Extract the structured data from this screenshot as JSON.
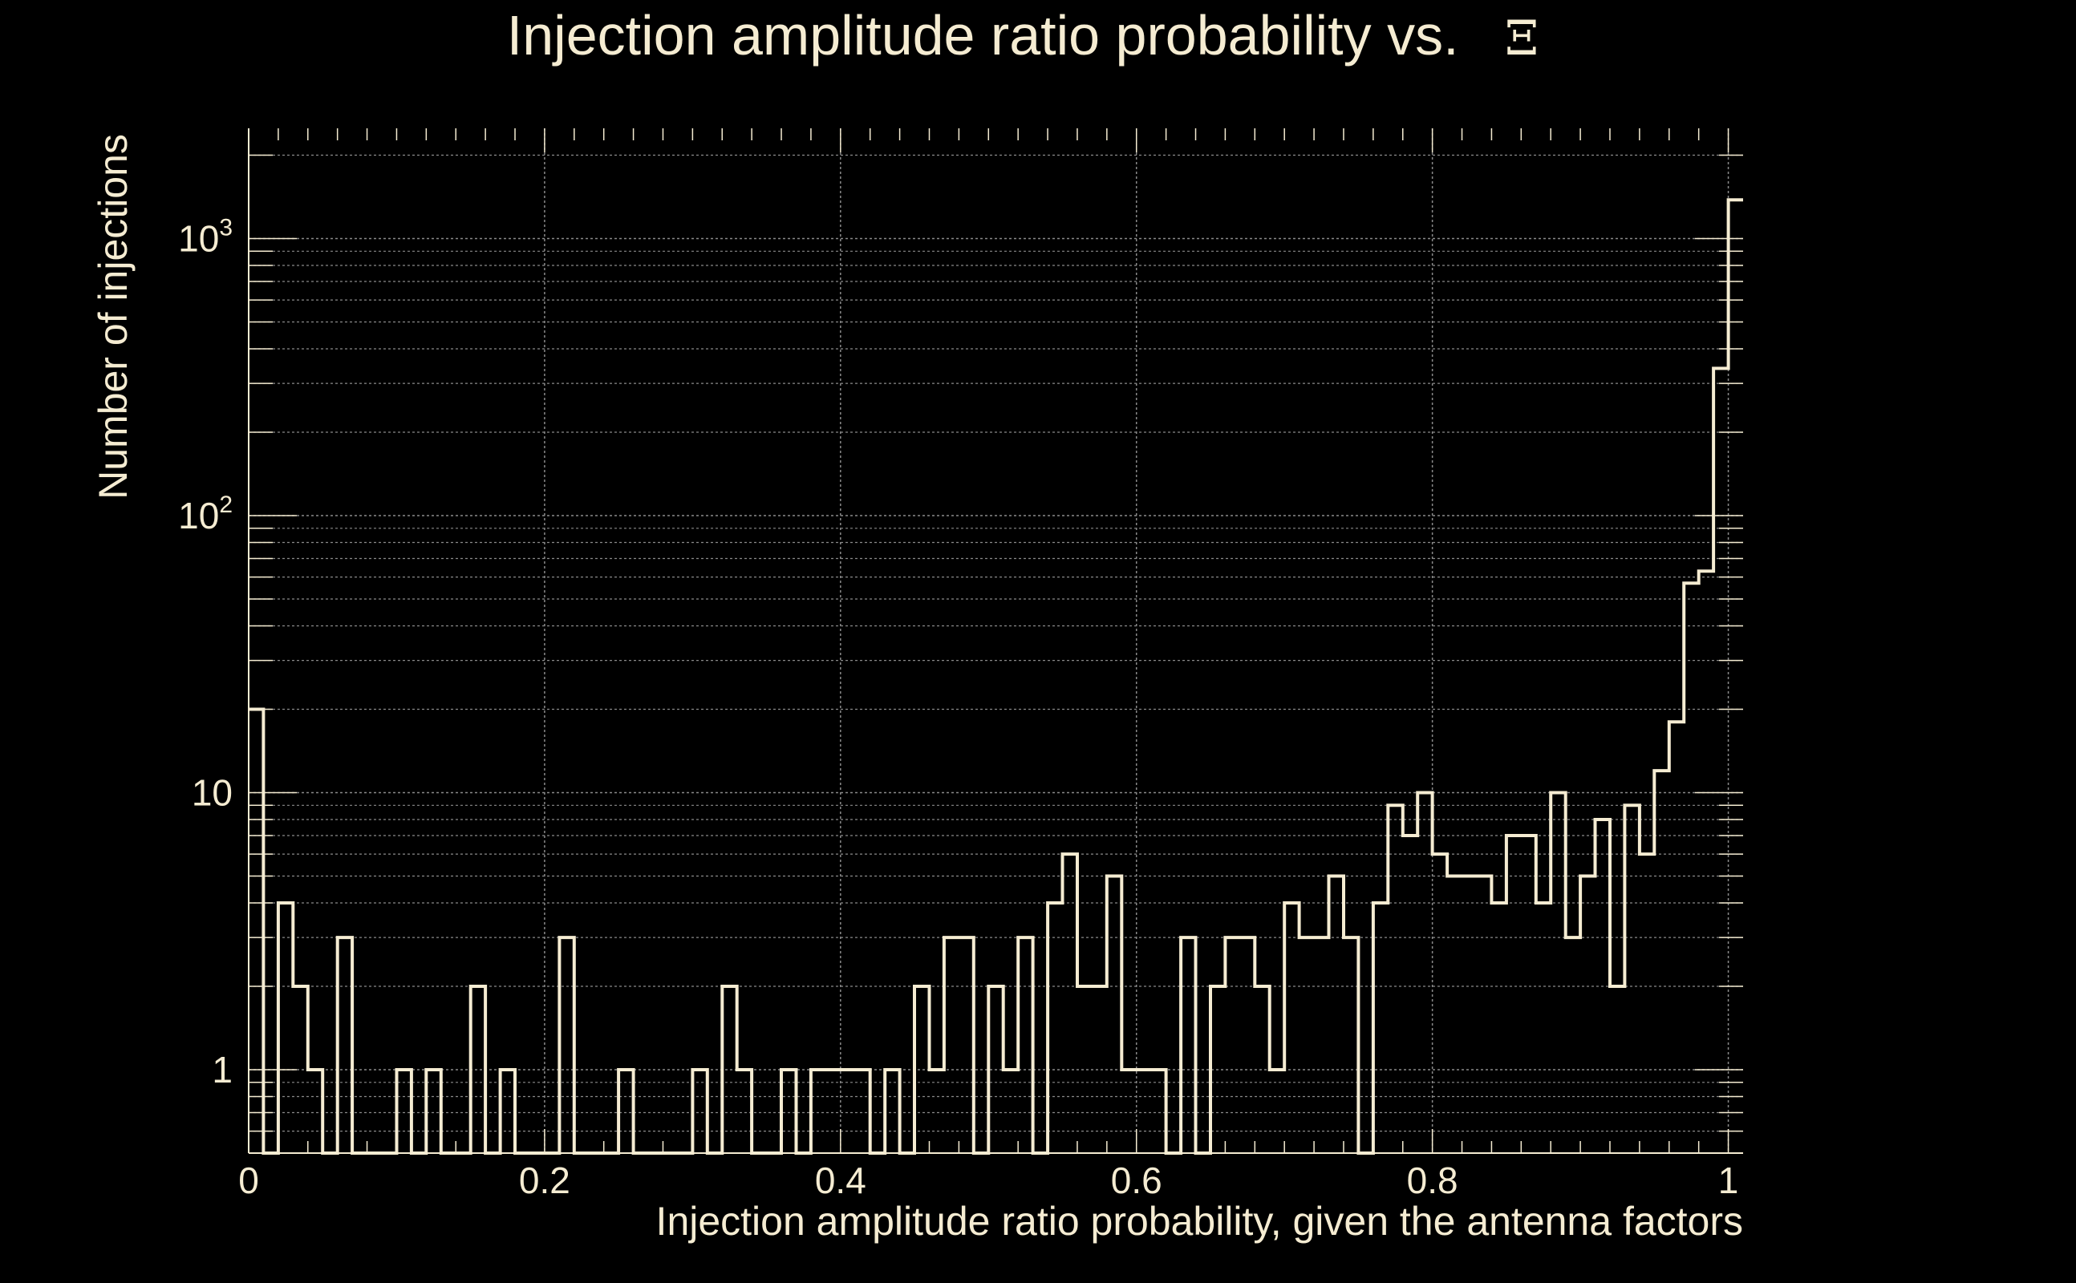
{
  "colors": {
    "background": "#000000",
    "foreground": "#f5ecd2",
    "grid": "#8a8a8a"
  },
  "chart_data": {
    "type": "histogram",
    "title": "Injection amplitude ratio probability vs.",
    "title_symbol": "Ξ",
    "xlabel": "Injection amplitude ratio probability, given the antenna factors",
    "ylabel": "Number of injections",
    "xlim": [
      0,
      1.01
    ],
    "ylim": [
      0.5,
      2500
    ],
    "yscale": "log",
    "grid": true,
    "x_ticks": [
      {
        "value": 0,
        "label": "0"
      },
      {
        "value": 0.2,
        "label": "0.2"
      },
      {
        "value": 0.4,
        "label": "0.4"
      },
      {
        "value": 0.6,
        "label": "0.6"
      },
      {
        "value": 0.8,
        "label": "0.8"
      },
      {
        "value": 1.0,
        "label": "1"
      }
    ],
    "y_ticks": [
      {
        "value": 1,
        "label": "1",
        "base": "1",
        "exp": ""
      },
      {
        "value": 10,
        "label": "10",
        "base": "10",
        "exp": ""
      },
      {
        "value": 100,
        "label": "10^2",
        "base": "10",
        "exp": "2"
      },
      {
        "value": 1000,
        "label": "10^3",
        "base": "10",
        "exp": "3"
      }
    ],
    "bin_width": 0.01,
    "bin_start": 0,
    "counts": [
      20,
      0,
      4,
      2,
      1,
      0,
      3,
      0,
      0,
      0,
      1,
      0,
      1,
      0,
      0,
      2,
      0,
      1,
      0,
      0,
      0,
      3,
      0,
      0,
      0,
      1,
      0,
      0,
      0,
      0,
      1,
      0,
      2,
      1,
      0,
      0,
      1,
      0,
      1,
      1,
      1,
      1,
      0,
      1,
      0,
      2,
      1,
      3,
      3,
      0,
      2,
      1,
      3,
      0,
      4,
      6,
      2,
      2,
      5,
      1,
      1,
      1,
      0,
      3,
      0,
      2,
      3,
      3,
      2,
      1,
      4,
      3,
      3,
      5,
      3,
      0,
      4,
      9,
      7,
      10,
      6,
      5,
      5,
      5,
      4,
      7,
      7,
      4,
      10,
      3,
      5,
      8,
      2,
      9,
      6,
      12,
      18,
      57,
      63,
      340,
      1380
    ]
  }
}
